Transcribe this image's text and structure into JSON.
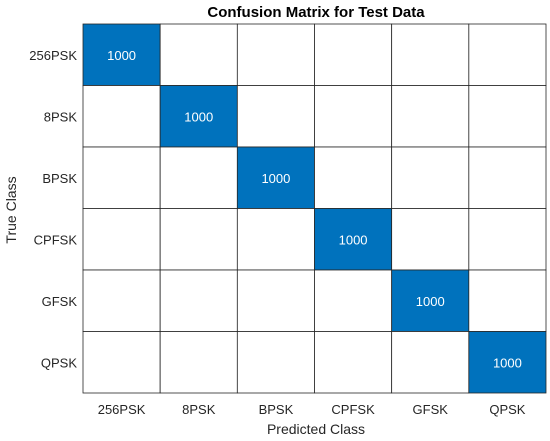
{
  "chart_data": {
    "type": "heatmap",
    "title": "Confusion Matrix for Test Data",
    "xlabel": "Predicted Class",
    "ylabel": "True Class",
    "row_labels": [
      "256PSK",
      "8PSK",
      "BPSK",
      "CPFSK",
      "GFSK",
      "QPSK"
    ],
    "col_labels": [
      "256PSK",
      "8PSK",
      "BPSK",
      "CPFSK",
      "GFSK",
      "QPSK"
    ],
    "values": [
      [
        1000,
        null,
        null,
        null,
        null,
        null
      ],
      [
        null,
        1000,
        null,
        null,
        null,
        null
      ],
      [
        null,
        null,
        1000,
        null,
        null,
        null
      ],
      [
        null,
        null,
        null,
        1000,
        null,
        null
      ],
      [
        null,
        null,
        null,
        null,
        1000,
        null
      ],
      [
        null,
        null,
        null,
        null,
        null,
        1000
      ]
    ],
    "colors": {
      "diagonal_fill": "#0072BD",
      "empty_fill": "#FFFFFF",
      "grid_line": "#262626",
      "cell_text": "#FFFFFF"
    }
  }
}
